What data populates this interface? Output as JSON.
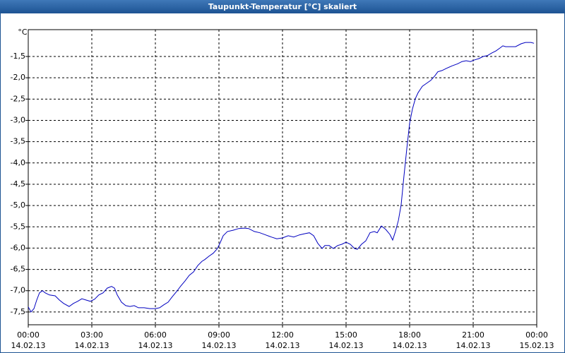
{
  "chart_data": {
    "type": "line",
    "title": "Taupunkt-Temperatur [°C] skaliert",
    "y_unit": "°C",
    "x": [
      0,
      0.13,
      0.27,
      0.4,
      0.53,
      0.67,
      0.8,
      1.0,
      1.27,
      1.47,
      1.67,
      1.93,
      2.13,
      2.33,
      2.53,
      2.73,
      2.93,
      3.13,
      3.33,
      3.53,
      3.73,
      3.93,
      4.07,
      4.2,
      4.4,
      4.6,
      4.8,
      5.0,
      5.2,
      5.47,
      5.73,
      6.0,
      6.2,
      6.4,
      6.6,
      6.8,
      7.0,
      7.2,
      7.4,
      7.6,
      7.8,
      8.0,
      8.2,
      8.33,
      8.53,
      8.73,
      8.93,
      9.07,
      9.2,
      9.4,
      9.67,
      9.93,
      10.2,
      10.4,
      10.67,
      10.93,
      11.2,
      11.47,
      11.73,
      12.0,
      12.27,
      12.53,
      12.8,
      13.07,
      13.27,
      13.47,
      13.67,
      13.87,
      14.0,
      14.2,
      14.4,
      14.6,
      14.8,
      15.0,
      15.2,
      15.4,
      15.53,
      15.73,
      15.93,
      16.13,
      16.33,
      16.47,
      16.67,
      16.87,
      17.07,
      17.2,
      17.33,
      17.47,
      17.6,
      17.73,
      17.87,
      18.0,
      18.13,
      18.27,
      18.4,
      18.6,
      18.8,
      19.0,
      19.2,
      19.33,
      19.53,
      19.73,
      20.0,
      20.27,
      20.47,
      20.67,
      20.87,
      21.07,
      21.27,
      21.47,
      21.67,
      21.87,
      22.07,
      22.27,
      22.4,
      22.53,
      22.73,
      23.0,
      23.27,
      23.47,
      23.73,
      23.87
    ],
    "series": [
      {
        "name": "Taupunkt-Temperatur",
        "color": "#0000c0",
        "values": [
          -7.38,
          -7.5,
          -7.42,
          -7.22,
          -7.05,
          -7.0,
          -7.05,
          -7.1,
          -7.12,
          -7.22,
          -7.3,
          -7.37,
          -7.3,
          -7.25,
          -7.19,
          -7.22,
          -7.25,
          -7.2,
          -7.1,
          -7.05,
          -6.94,
          -6.9,
          -6.94,
          -7.1,
          -7.27,
          -7.35,
          -7.37,
          -7.35,
          -7.4,
          -7.4,
          -7.42,
          -7.42,
          -7.4,
          -7.33,
          -7.27,
          -7.14,
          -7.02,
          -6.89,
          -6.77,
          -6.64,
          -6.56,
          -6.41,
          -6.31,
          -6.27,
          -6.19,
          -6.12,
          -6.01,
          -5.86,
          -5.71,
          -5.61,
          -5.58,
          -5.54,
          -5.53,
          -5.54,
          -5.61,
          -5.64,
          -5.69,
          -5.74,
          -5.78,
          -5.76,
          -5.71,
          -5.74,
          -5.69,
          -5.66,
          -5.64,
          -5.71,
          -5.89,
          -6.01,
          -5.94,
          -5.94,
          -6.01,
          -5.94,
          -5.91,
          -5.86,
          -5.91,
          -6.01,
          -6.03,
          -5.91,
          -5.83,
          -5.64,
          -5.61,
          -5.64,
          -5.48,
          -5.56,
          -5.68,
          -5.81,
          -5.61,
          -5.35,
          -4.98,
          -4.32,
          -3.65,
          -3.07,
          -2.74,
          -2.49,
          -2.35,
          -2.2,
          -2.13,
          -2.06,
          -1.95,
          -1.86,
          -1.83,
          -1.78,
          -1.72,
          -1.67,
          -1.62,
          -1.6,
          -1.62,
          -1.58,
          -1.55,
          -1.5,
          -1.48,
          -1.42,
          -1.37,
          -1.3,
          -1.25,
          -1.27,
          -1.27,
          -1.27,
          -1.2,
          -1.17,
          -1.17,
          -1.19
        ]
      }
    ],
    "xlim": [
      0,
      24
    ],
    "xticks": [
      {
        "value": 0,
        "label": "00:00",
        "sublabel": "14.02.13"
      },
      {
        "value": 3,
        "label": "03:00",
        "sublabel": "14.02.13"
      },
      {
        "value": 6,
        "label": "06:00",
        "sublabel": "14.02.13"
      },
      {
        "value": 9,
        "label": "09:00",
        "sublabel": "14.02.13"
      },
      {
        "value": 12,
        "label": "12:00",
        "sublabel": "14.02.13"
      },
      {
        "value": 15,
        "label": "15:00",
        "sublabel": "14.02.13"
      },
      {
        "value": 18,
        "label": "18:00",
        "sublabel": "14.02.13"
      },
      {
        "value": 21,
        "label": "21:00",
        "sublabel": "14.02.13"
      },
      {
        "value": 24,
        "label": "00:00",
        "sublabel": "15.02.13"
      }
    ],
    "ylim": [
      -7.8,
      -0.87
    ],
    "yticks": [
      {
        "value": -7.5,
        "label": "-7,5"
      },
      {
        "value": -7.0,
        "label": "-7,0"
      },
      {
        "value": -6.5,
        "label": "-6,5"
      },
      {
        "value": -6.0,
        "label": "-6,0"
      },
      {
        "value": -5.5,
        "label": "-5,5"
      },
      {
        "value": -5.0,
        "label": "-5,0"
      },
      {
        "value": -4.5,
        "label": "-4,5"
      },
      {
        "value": -4.0,
        "label": "-4,0"
      },
      {
        "value": -3.5,
        "label": "-3,5"
      },
      {
        "value": -3.0,
        "label": "-3,0"
      },
      {
        "value": -2.5,
        "label": "-2,5"
      },
      {
        "value": -2.0,
        "label": "-2,0"
      },
      {
        "value": -1.5,
        "label": "-1,5"
      }
    ],
    "grid": true
  }
}
